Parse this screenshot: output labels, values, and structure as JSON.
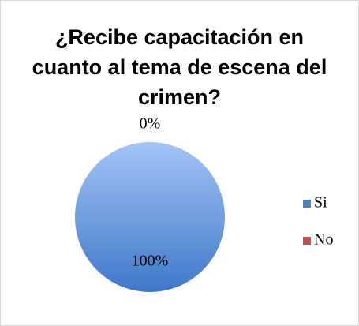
{
  "chart_data": {
    "type": "pie",
    "title": "¿Recibe capacitación en cuanto al tema de escena del crimen?",
    "categories": [
      "Si",
      "No"
    ],
    "values": [
      100,
      0
    ],
    "value_labels": [
      "100%",
      "0%"
    ],
    "colors": [
      "#4f81bd",
      "#c0504d"
    ],
    "legend": "right"
  }
}
